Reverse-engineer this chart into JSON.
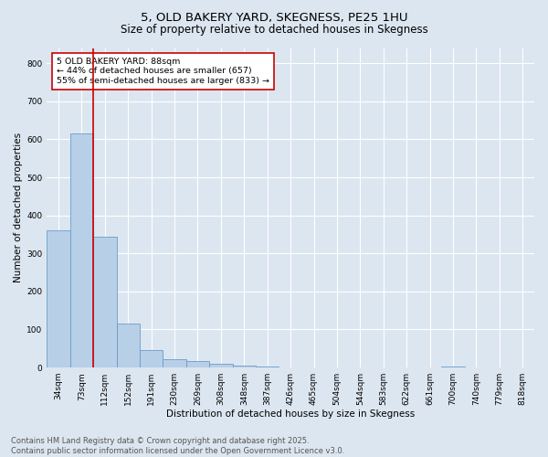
{
  "title_line1": "5, OLD BAKERY YARD, SKEGNESS, PE25 1HU",
  "title_line2": "Size of property relative to detached houses in Skegness",
  "xlabel": "Distribution of detached houses by size in Skegness",
  "ylabel": "Number of detached properties",
  "categories": [
    "34sqm",
    "73sqm",
    "112sqm",
    "152sqm",
    "191sqm",
    "230sqm",
    "269sqm",
    "308sqm",
    "348sqm",
    "387sqm",
    "426sqm",
    "465sqm",
    "504sqm",
    "544sqm",
    "583sqm",
    "622sqm",
    "661sqm",
    "700sqm",
    "740sqm",
    "779sqm",
    "818sqm"
  ],
  "values": [
    360,
    615,
    345,
    115,
    45,
    22,
    18,
    10,
    6,
    2,
    1,
    0,
    0,
    0,
    0,
    0,
    0,
    2,
    0,
    0,
    0
  ],
  "bar_color": "#b8cfe8",
  "bar_edge_color": "#6a9cc8",
  "vline_x": 1.5,
  "vline_color": "#cc0000",
  "annotation_text": "5 OLD BAKERY YARD: 88sqm\n← 44% of detached houses are smaller (657)\n55% of semi-detached houses are larger (833) →",
  "annotation_box_color": "#ffffff",
  "annotation_box_edge_color": "#cc0000",
  "ylim": [
    0,
    840
  ],
  "yticks": [
    0,
    100,
    200,
    300,
    400,
    500,
    600,
    700,
    800
  ],
  "background_color": "#dce6f0",
  "plot_bg_color": "#dce6f0",
  "footer_line1": "Contains HM Land Registry data © Crown copyright and database right 2025.",
  "footer_line2": "Contains public sector information licensed under the Open Government Licence v3.0.",
  "title_fontsize": 9.5,
  "subtitle_fontsize": 8.5,
  "axis_label_fontsize": 7.5,
  "tick_fontsize": 6.5,
  "annotation_fontsize": 6.8,
  "footer_fontsize": 6.0
}
